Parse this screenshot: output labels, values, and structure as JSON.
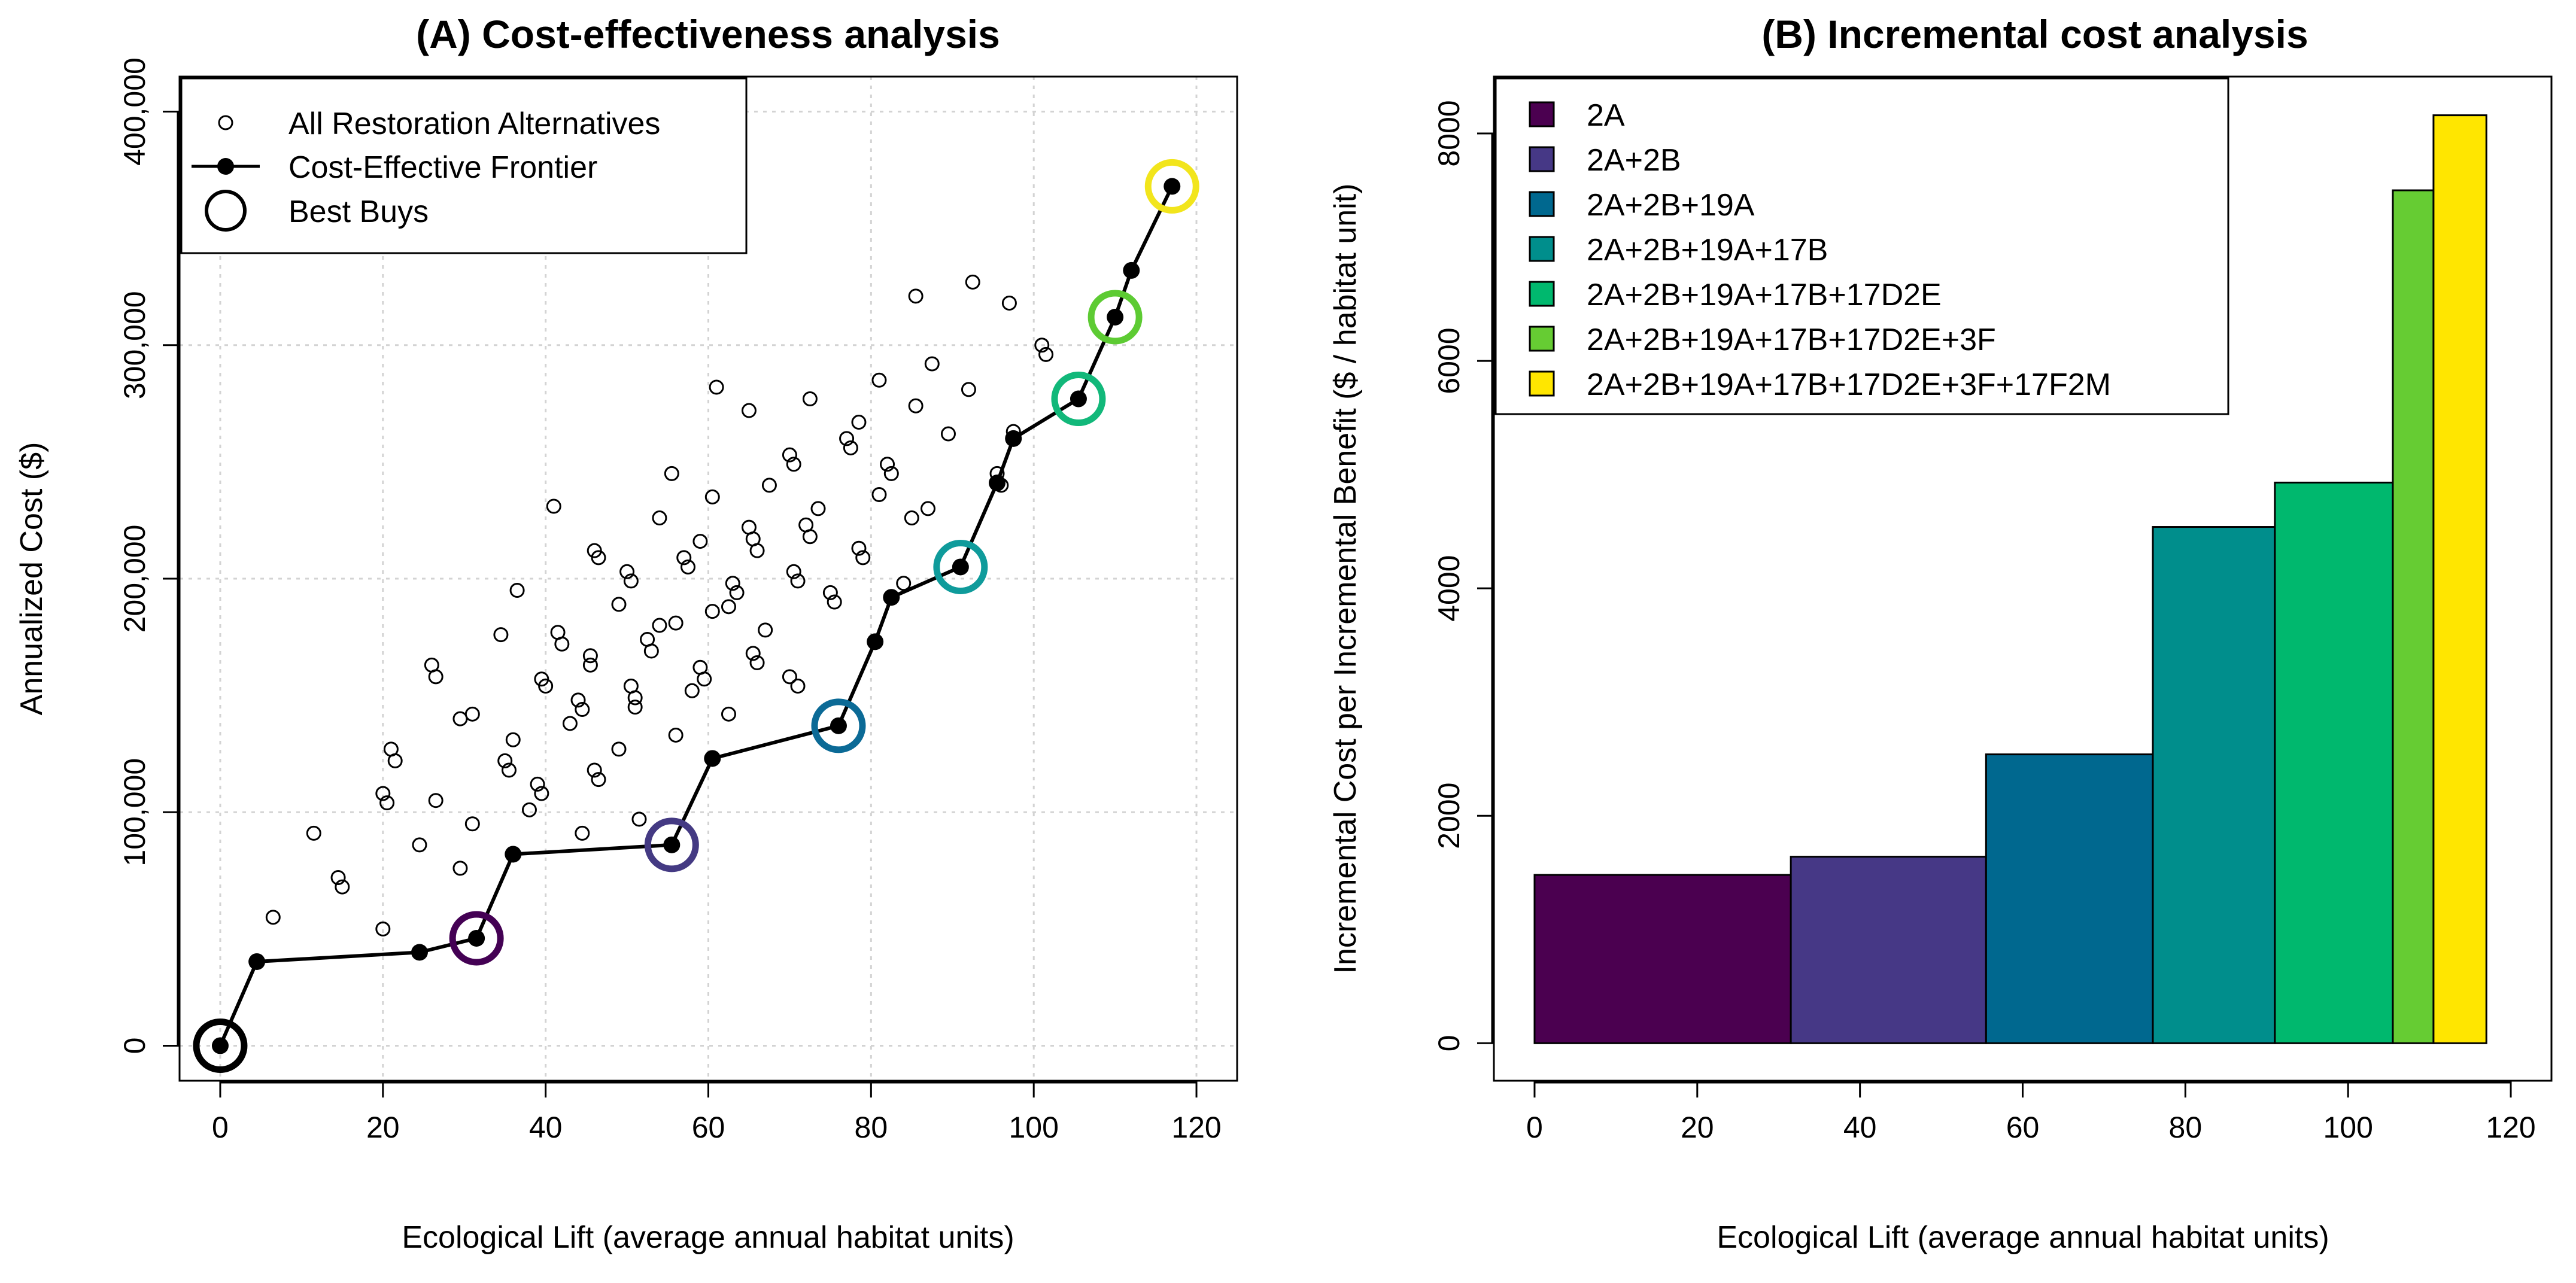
{
  "chart_data": [
    {
      "type": "scatter",
      "title": "(A) Cost-effectiveness analysis",
      "xlabel": "Ecological Lift (average annual habitat units)",
      "ylabel": "Annualized Cost ($)",
      "xlim": [
        -5,
        125
      ],
      "ylim": [
        -15000,
        415000
      ],
      "xticks": [
        0,
        20,
        40,
        60,
        80,
        100,
        120
      ],
      "xtick_labels": [
        "0",
        "20",
        "40",
        "60",
        "80",
        "100",
        "120"
      ],
      "yticks": [
        0,
        100000,
        200000,
        300000,
        400000
      ],
      "ytick_labels": [
        "0",
        "100,000",
        "200,000",
        "300,000",
        "400,000"
      ],
      "grid": true,
      "legend": {
        "position": "top-left",
        "entries": [
          "All Restoration Alternatives",
          "Cost-Effective Frontier",
          "Best Buys"
        ]
      },
      "all_alternatives": [
        [
          6.5,
          55000
        ],
        [
          11.5,
          91000
        ],
        [
          14.5,
          72000
        ],
        [
          15,
          68000
        ],
        [
          20,
          108000
        ],
        [
          20.5,
          104000
        ],
        [
          21,
          127000
        ],
        [
          21.5,
          122000
        ],
        [
          20,
          50000
        ],
        [
          24.5,
          86000
        ],
        [
          26,
          163000
        ],
        [
          26.5,
          158000
        ],
        [
          26.5,
          105000
        ],
        [
          29.5,
          140000
        ],
        [
          29.5,
          76000
        ],
        [
          31,
          142000
        ],
        [
          31,
          95000
        ],
        [
          34.5,
          176000
        ],
        [
          35,
          122000
        ],
        [
          35.5,
          118000
        ],
        [
          36,
          131000
        ],
        [
          36.5,
          195000
        ],
        [
          38,
          101000
        ],
        [
          39,
          112000
        ],
        [
          39.5,
          157000
        ],
        [
          39.5,
          108000
        ],
        [
          40,
          154000
        ],
        [
          41,
          231000
        ],
        [
          41.5,
          177000
        ],
        [
          42,
          172000
        ],
        [
          43,
          138000
        ],
        [
          44,
          148000
        ],
        [
          44.5,
          144000
        ],
        [
          44.5,
          91000
        ],
        [
          45.5,
          167000
        ],
        [
          45.5,
          163000
        ],
        [
          46,
          212000
        ],
        [
          46,
          118000
        ],
        [
          46.5,
          209000
        ],
        [
          46.5,
          114000
        ],
        [
          49,
          189000
        ],
        [
          49,
          127000
        ],
        [
          50,
          203000
        ],
        [
          50.5,
          199000
        ],
        [
          50.5,
          154000
        ],
        [
          51,
          149000
        ],
        [
          51,
          145000
        ],
        [
          51.5,
          97000
        ],
        [
          52.5,
          174000
        ],
        [
          53,
          169000
        ],
        [
          54,
          180000
        ],
        [
          54,
          226000
        ],
        [
          55.5,
          245000
        ],
        [
          56,
          181000
        ],
        [
          56,
          133000
        ],
        [
          57,
          209000
        ],
        [
          57.5,
          205000
        ],
        [
          58,
          152000
        ],
        [
          59,
          216000
        ],
        [
          59,
          162000
        ],
        [
          59.5,
          157000
        ],
        [
          60.5,
          235000
        ],
        [
          60.5,
          186000
        ],
        [
          61,
          282000
        ],
        [
          62.5,
          188000
        ],
        [
          62.5,
          142000
        ],
        [
          63,
          198000
        ],
        [
          63.5,
          194000
        ],
        [
          65,
          272000
        ],
        [
          65,
          222000
        ],
        [
          65.5,
          217000
        ],
        [
          65.5,
          168000
        ],
        [
          66,
          212000
        ],
        [
          66,
          164000
        ],
        [
          67,
          178000
        ],
        [
          67.5,
          240000
        ],
        [
          70,
          158000
        ],
        [
          70,
          253000
        ],
        [
          70.5,
          249000
        ],
        [
          70.5,
          203000
        ],
        [
          71,
          199000
        ],
        [
          71,
          154000
        ],
        [
          72,
          223000
        ],
        [
          72.5,
          218000
        ],
        [
          72.5,
          277000
        ],
        [
          73.5,
          230000
        ],
        [
          75,
          194000
        ],
        [
          75.5,
          190000
        ],
        [
          77,
          260000
        ],
        [
          77.5,
          256000
        ],
        [
          78.5,
          267000
        ],
        [
          78.5,
          213000
        ],
        [
          79,
          209000
        ],
        [
          81,
          285000
        ],
        [
          81,
          236000
        ],
        [
          82,
          249000
        ],
        [
          82.5,
          245000
        ],
        [
          84,
          198000
        ],
        [
          85,
          226000
        ],
        [
          85.5,
          321000
        ],
        [
          85.5,
          274000
        ],
        [
          87,
          230000
        ],
        [
          87.5,
          292000
        ],
        [
          89.5,
          262000
        ],
        [
          92,
          281000
        ],
        [
          92.5,
          327000
        ],
        [
          95.5,
          245000
        ],
        [
          96,
          240000
        ],
        [
          97,
          318000
        ],
        [
          97.5,
          263000
        ],
        [
          101,
          300000
        ],
        [
          101.5,
          296000
        ]
      ],
      "frontier": [
        [
          0,
          0
        ],
        [
          4.5,
          36000
        ],
        [
          24.5,
          40000
        ],
        [
          31.5,
          46000
        ],
        [
          36,
          82000
        ],
        [
          55.5,
          86000
        ],
        [
          60.5,
          123000
        ],
        [
          76,
          137000
        ],
        [
          80.5,
          173000
        ],
        [
          82.5,
          192000
        ],
        [
          91,
          205000
        ],
        [
          95.5,
          241000
        ],
        [
          97.5,
          260000
        ],
        [
          105.5,
          277000
        ],
        [
          110,
          312000
        ],
        [
          112,
          332000
        ],
        [
          117,
          368000
        ]
      ],
      "best_buys": [
        {
          "x": 0,
          "y": 0,
          "color": "#000000"
        },
        {
          "x": 31.5,
          "y": 46000,
          "color": "#440154"
        },
        {
          "x": 55.5,
          "y": 86000,
          "color": "#443A83"
        },
        {
          "x": 76,
          "y": 137000,
          "color": "#0B6A96"
        },
        {
          "x": 91,
          "y": 205000,
          "color": "#0F9B9B"
        },
        {
          "x": 105.5,
          "y": 277000,
          "color": "#12B87A"
        },
        {
          "x": 110,
          "y": 312000,
          "color": "#5DCB33"
        },
        {
          "x": 117,
          "y": 368000,
          "color": "#F2E51C"
        }
      ]
    },
    {
      "type": "bar",
      "title": "(B) Incremental cost analysis",
      "xlabel": "Ecological Lift (average annual habitat units)",
      "ylabel": "Incremental Cost per Incremental Benefit ($ / habitat unit)",
      "xlim": [
        -5,
        125
      ],
      "ylim": [
        -330,
        8500
      ],
      "xticks": [
        0,
        20,
        40,
        60,
        80,
        100,
        120
      ],
      "xtick_labels": [
        "0",
        "20",
        "40",
        "60",
        "80",
        "100",
        "120"
      ],
      "yticks": [
        0,
        2000,
        4000,
        6000,
        8000
      ],
      "ytick_labels": [
        "0",
        "2000",
        "4000",
        "6000",
        "8000"
      ],
      "legend": {
        "position": "top-left"
      },
      "series": [
        {
          "name": "2A",
          "x0": 0,
          "x1": 31.5,
          "value": 1480,
          "color": "#4B0050"
        },
        {
          "name": "2A+2B",
          "x0": 31.5,
          "x1": 55.5,
          "value": 1640,
          "color": "#463886"
        },
        {
          "name": "2A+2B+19A",
          "x0": 55.5,
          "x1": 76,
          "value": 2540,
          "color": "#00688F"
        },
        {
          "name": "2A+2B+19A+17B",
          "x0": 76,
          "x1": 91,
          "value": 4540,
          "color": "#008E8C"
        },
        {
          "name": "2A+2B+19A+17B+17D2E",
          "x0": 91,
          "x1": 105.5,
          "value": 4930,
          "color": "#00B86E"
        },
        {
          "name": "2A+2B+19A+17B+17D2E+3F",
          "x0": 105.5,
          "x1": 110.5,
          "value": 7500,
          "color": "#66CC33"
        },
        {
          "name": "2A+2B+19A+17B+17D2E+3F+17F2M",
          "x0": 110.5,
          "x1": 117,
          "value": 8160,
          "color": "#FFE600"
        }
      ]
    }
  ]
}
